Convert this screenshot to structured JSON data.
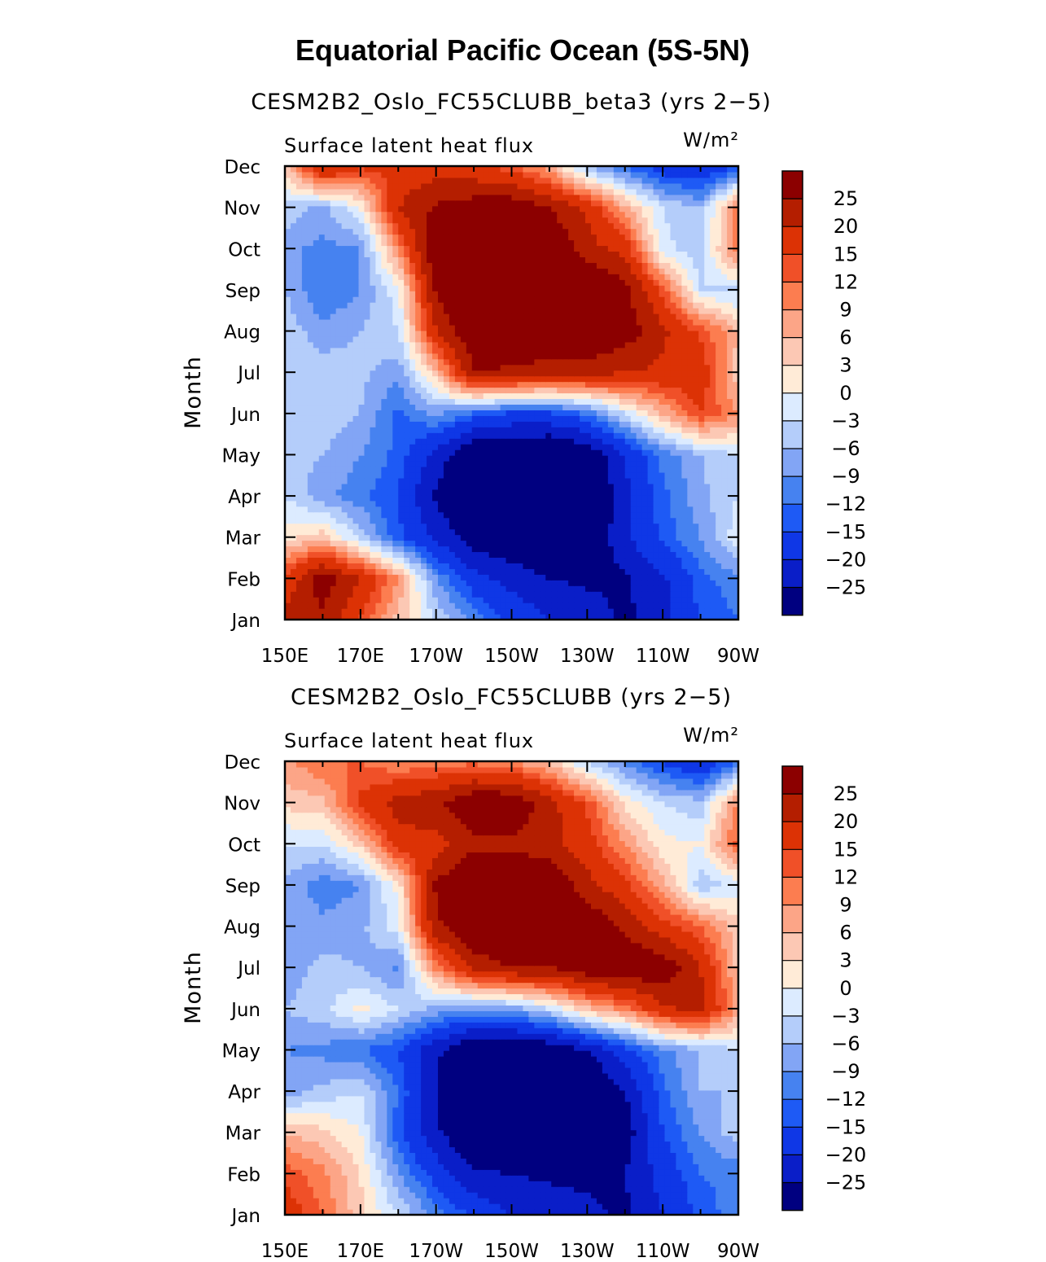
{
  "figure_title": "Equatorial Pacific Ocean (5S-5N)",
  "chart_data": [
    {
      "type": "heatmap",
      "title": "CESM2B2_Oslo_FC55CLUBB_beta3 (yrs 2−5)",
      "left_label": "Surface latent heat flux",
      "units_label": "W/m²",
      "ylabel": "Month",
      "xlabel": "",
      "x_tick_labels": [
        "150E",
        "170E",
        "170W",
        "150W",
        "130W",
        "110W",
        "90W"
      ],
      "y_tick_labels": [
        "Jan",
        "Feb",
        "Mar",
        "Apr",
        "May",
        "Jun",
        "Jul",
        "Aug",
        "Sep",
        "Oct",
        "Nov",
        "Dec"
      ],
      "x": [
        "150E",
        "160E",
        "170E",
        "180",
        "170W",
        "160W",
        "150W",
        "140W",
        "130W",
        "120W",
        "110W",
        "100W",
        "90W"
      ],
      "y": [
        "Jan",
        "Feb",
        "Mar",
        "Apr",
        "May",
        "Jun",
        "Jul",
        "Aug",
        "Sep",
        "Oct",
        "Nov",
        "Dec"
      ],
      "z": [
        [
          22,
          24,
          14,
          5,
          -3,
          -10,
          -16,
          -20,
          -22,
          -26,
          -22,
          -15,
          -12
        ],
        [
          16,
          28,
          20,
          9,
          -9,
          -18,
          -22,
          -25,
          -26,
          -26,
          -21,
          -13,
          -10
        ],
        [
          2,
          5,
          -4,
          -14,
          -21,
          -28,
          -30,
          -30,
          -31,
          -21,
          -14,
          -9,
          -1
        ],
        [
          -3,
          -8,
          -11,
          -15,
          -26,
          -33,
          -34,
          -33,
          -33,
          -21,
          -13,
          -7,
          -3
        ],
        [
          -5,
          -6,
          -9,
          -13,
          -22,
          -31,
          -32,
          -33,
          -30,
          -20,
          -11,
          -6,
          -3
        ],
        [
          -4,
          -4,
          -6,
          -13,
          -8,
          -13,
          -16,
          -16,
          -12,
          -3,
          6,
          15,
          9
        ],
        [
          -3,
          -4,
          -5,
          -8,
          5,
          25,
          24,
          22,
          22,
          20,
          19,
          18,
          4
        ],
        [
          -4,
          -8,
          -6,
          -3,
          20,
          30,
          30,
          32,
          31,
          28,
          21,
          14,
          6
        ],
        [
          -6,
          -12,
          -9,
          -1,
          26,
          32,
          32,
          32,
          32,
          27,
          14,
          -3,
          -4
        ],
        [
          -8,
          -10,
          -9,
          10,
          30,
          32,
          31,
          31,
          22,
          18,
          -2,
          -5,
          12
        ],
        [
          -4,
          -7,
          0,
          20,
          26,
          28,
          29,
          25,
          19,
          7,
          -3,
          -6,
          12
        ],
        [
          4,
          22,
          16,
          16,
          17,
          16,
          13,
          7,
          -6,
          -12,
          -18,
          -20,
          -15
        ]
      ],
      "levels": [
        -25,
        -20,
        -15,
        -12,
        -9,
        -6,
        -3,
        0,
        3,
        6,
        9,
        12,
        15,
        20,
        25
      ],
      "colorbar_labels": [
        "25",
        "20",
        "15",
        "12",
        "9",
        "6",
        "3",
        "0",
        "−3",
        "−6",
        "−9",
        "−12",
        "−15",
        "−20",
        "−25"
      ],
      "colors": [
        "#000080",
        "#0a1ec8",
        "#0f37e6",
        "#1e5af5",
        "#4682f0",
        "#82a5f5",
        "#b4cdfa",
        "#dcebff",
        "#ffebd7",
        "#fcc8b4",
        "#fca587",
        "#fc7d50",
        "#f05028",
        "#dc3205",
        "#b41e00",
        "#8c0000"
      ]
    },
    {
      "type": "heatmap",
      "title": "CESM2B2_Oslo_FC55CLUBB (yrs 2−5)",
      "left_label": "Surface latent heat flux",
      "units_label": "W/m²",
      "ylabel": "Month",
      "xlabel": "",
      "x_tick_labels": [
        "150E",
        "170E",
        "170W",
        "150W",
        "130W",
        "110W",
        "90W"
      ],
      "y_tick_labels": [
        "Jan",
        "Feb",
        "Mar",
        "Apr",
        "May",
        "Jun",
        "Jul",
        "Aug",
        "Sep",
        "Oct",
        "Nov",
        "Dec"
      ],
      "x": [
        "150E",
        "160E",
        "170E",
        "180",
        "170W",
        "160W",
        "150W",
        "140W",
        "130W",
        "120W",
        "110W",
        "100W",
        "90W"
      ],
      "y": [
        "Jan",
        "Feb",
        "Mar",
        "Apr",
        "May",
        "Jun",
        "Jul",
        "Aug",
        "Sep",
        "Oct",
        "Nov",
        "Dec"
      ],
      "z": [
        [
          18,
          12,
          4,
          -3,
          -10,
          -16,
          -20,
          -22,
          -24,
          -26,
          -20,
          -14,
          -10
        ],
        [
          14,
          10,
          3,
          -9,
          -17,
          -24,
          -25,
          -26,
          -26,
          -25,
          -18,
          -12,
          -11
        ],
        [
          6,
          4,
          0,
          -14,
          -24,
          -31,
          -33,
          -33,
          -33,
          -28,
          -15,
          -9,
          -4
        ],
        [
          -8,
          -5,
          -3,
          -12,
          -25,
          -33,
          -34,
          -34,
          -32,
          -25,
          -13,
          -6,
          -6
        ],
        [
          -9,
          -10,
          -12,
          -15,
          -24,
          -31,
          -31,
          -30,
          -25,
          -17,
          -10,
          -6,
          -3
        ],
        [
          -6,
          -4,
          1,
          -3,
          -7,
          -9,
          -8,
          -3,
          5,
          10,
          19,
          22,
          8
        ],
        [
          -8,
          -5,
          -6,
          -10,
          10,
          22,
          25,
          25,
          29,
          30,
          29,
          20,
          5
        ],
        [
          -6,
          -8,
          -7,
          -1,
          24,
          30,
          31,
          31,
          30,
          24,
          17,
          12,
          4
        ],
        [
          -7,
          -11,
          -9,
          1,
          26,
          31,
          31,
          30,
          22,
          16,
          7,
          -5,
          -2
        ],
        [
          -3,
          -3,
          4,
          18,
          18,
          24,
          24,
          22,
          17,
          9,
          1,
          0,
          13
        ],
        [
          4,
          5,
          16,
          22,
          24,
          30,
          30,
          22,
          14,
          2,
          -3,
          -5,
          10
        ],
        [
          8,
          12,
          12,
          9,
          10,
          11,
          9,
          5,
          -4,
          -10,
          -16,
          -20,
          -12
        ]
      ],
      "levels": [
        -25,
        -20,
        -15,
        -12,
        -9,
        -6,
        -3,
        0,
        3,
        6,
        9,
        12,
        15,
        20,
        25
      ],
      "colorbar_labels": [
        "25",
        "20",
        "15",
        "12",
        "9",
        "6",
        "3",
        "0",
        "−3",
        "−6",
        "−9",
        "−12",
        "−15",
        "−20",
        "−25"
      ],
      "colors": [
        "#000080",
        "#0a1ec8",
        "#0f37e6",
        "#1e5af5",
        "#4682f0",
        "#82a5f5",
        "#b4cdfa",
        "#dcebff",
        "#ffebd7",
        "#fcc8b4",
        "#fca587",
        "#fc7d50",
        "#f05028",
        "#dc3205",
        "#b41e00",
        "#8c0000"
      ]
    }
  ]
}
